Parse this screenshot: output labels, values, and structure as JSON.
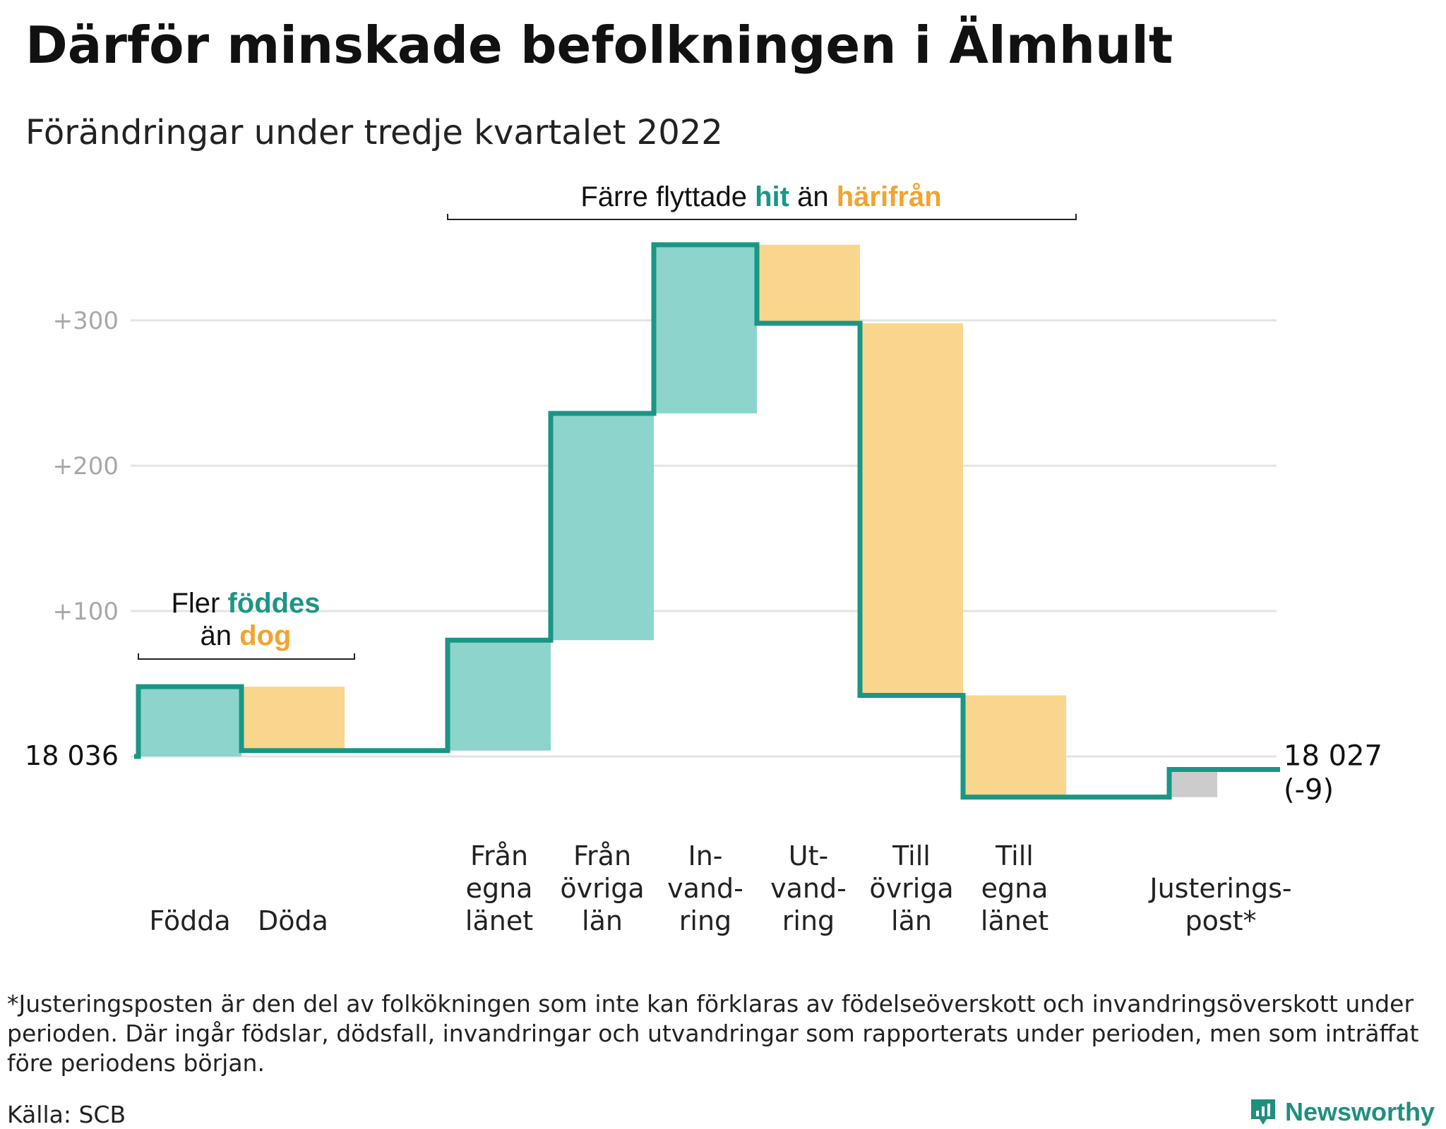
{
  "title": "Därför minskade befolkningen i Älmhult",
  "subtitle": "Förändringar under tredje kvartalet 2022",
  "colors": {
    "increase": "#8dd4cc",
    "decrease": "#fad58d",
    "adjustment": "#cccccc",
    "line": "#1a9685",
    "grid": "#e3e3e3",
    "tick": "#a8a8a8",
    "teal_text": "#1a9685",
    "orange_text": "#f2a42f"
  },
  "chart_data": {
    "type": "waterfall",
    "y_axis_ticks": [
      {
        "value": 0,
        "label": "18 036"
      },
      {
        "value": 100,
        "label": "+100"
      },
      {
        "value": 200,
        "label": "+200"
      },
      {
        "value": 300,
        "label": "+300"
      }
    ],
    "ylim": [
      -30,
      350
    ],
    "start_value": 18036,
    "end_label": "18 027",
    "end_change": "(-9)",
    "steps": [
      {
        "label": [
          "Födda"
        ],
        "change": 48,
        "kind": "increase"
      },
      {
        "label": [
          "Döda"
        ],
        "change": -44,
        "kind": "decrease"
      },
      {
        "label": [],
        "change": 0,
        "kind": "gap"
      },
      {
        "label": [
          "Från",
          "egna",
          "länet"
        ],
        "change": 76,
        "kind": "increase"
      },
      {
        "label": [
          "Från",
          "övriga",
          "län"
        ],
        "change": 156,
        "kind": "increase"
      },
      {
        "label": [
          "In-",
          "vand-",
          "ring"
        ],
        "change": 116,
        "kind": "increase"
      },
      {
        "label": [
          "Ut-",
          "vand-",
          "ring"
        ],
        "change": -54,
        "kind": "decrease"
      },
      {
        "label": [
          "Till",
          "övriga",
          "län"
        ],
        "change": -256,
        "kind": "decrease"
      },
      {
        "label": [
          "Till",
          "egna",
          "länet"
        ],
        "change": -70,
        "kind": "decrease"
      },
      {
        "label": [],
        "change": 0,
        "kind": "gap"
      },
      {
        "label": [
          "Justerings-",
          "post*"
        ],
        "change": 19,
        "kind": "adjustment"
      }
    ],
    "annotations": [
      {
        "line1": [
          {
            "text": "Fler ",
            "style": "plain"
          },
          {
            "text": "föddes",
            "style": "teal"
          }
        ],
        "line2": [
          {
            "text": "än ",
            "style": "plain"
          },
          {
            "text": "dog",
            "style": "orange"
          }
        ]
      },
      {
        "line1": [
          {
            "text": "Färre flyttade ",
            "style": "plain"
          },
          {
            "text": "hit",
            "style": "teal"
          },
          {
            "text": " än ",
            "style": "plain"
          },
          {
            "text": "härifrån",
            "style": "orange"
          }
        ]
      }
    ]
  },
  "footnote": "*Justeringsposten är den del av folkökningen som inte kan förklaras av födelseöverskott och invandringsöverskott under perioden. Där ingår födslar, dödsfall, invandringar och utvandringar som rapporterats under perioden, men som inträffat före periodens början.",
  "source": "Källa: SCB",
  "brand": {
    "name": "Newsworthy",
    "icon": "newsworthy-logo-icon"
  }
}
